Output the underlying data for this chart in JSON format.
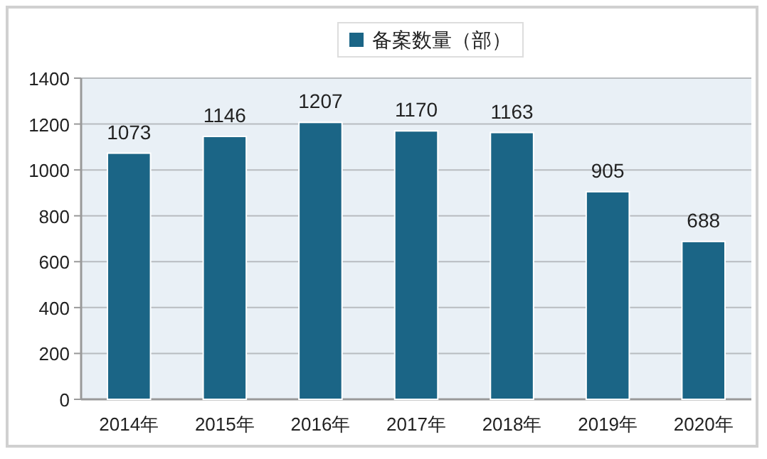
{
  "chart_data": {
    "type": "bar",
    "categories": [
      "2014年",
      "2015年",
      "2016年",
      "2017年",
      "2018年",
      "2019年",
      "2020年"
    ],
    "series": [
      {
        "name": "备案数量（部）",
        "color": "#1b6586",
        "values": [
          1073,
          1146,
          1207,
          1170,
          1163,
          905,
          688
        ]
      }
    ],
    "ylim": [
      0,
      1400
    ],
    "yticks": [
      0,
      200,
      400,
      600,
      800,
      1000,
      1200,
      1400
    ],
    "grid": "y",
    "legend": "top",
    "data_labels": true
  }
}
